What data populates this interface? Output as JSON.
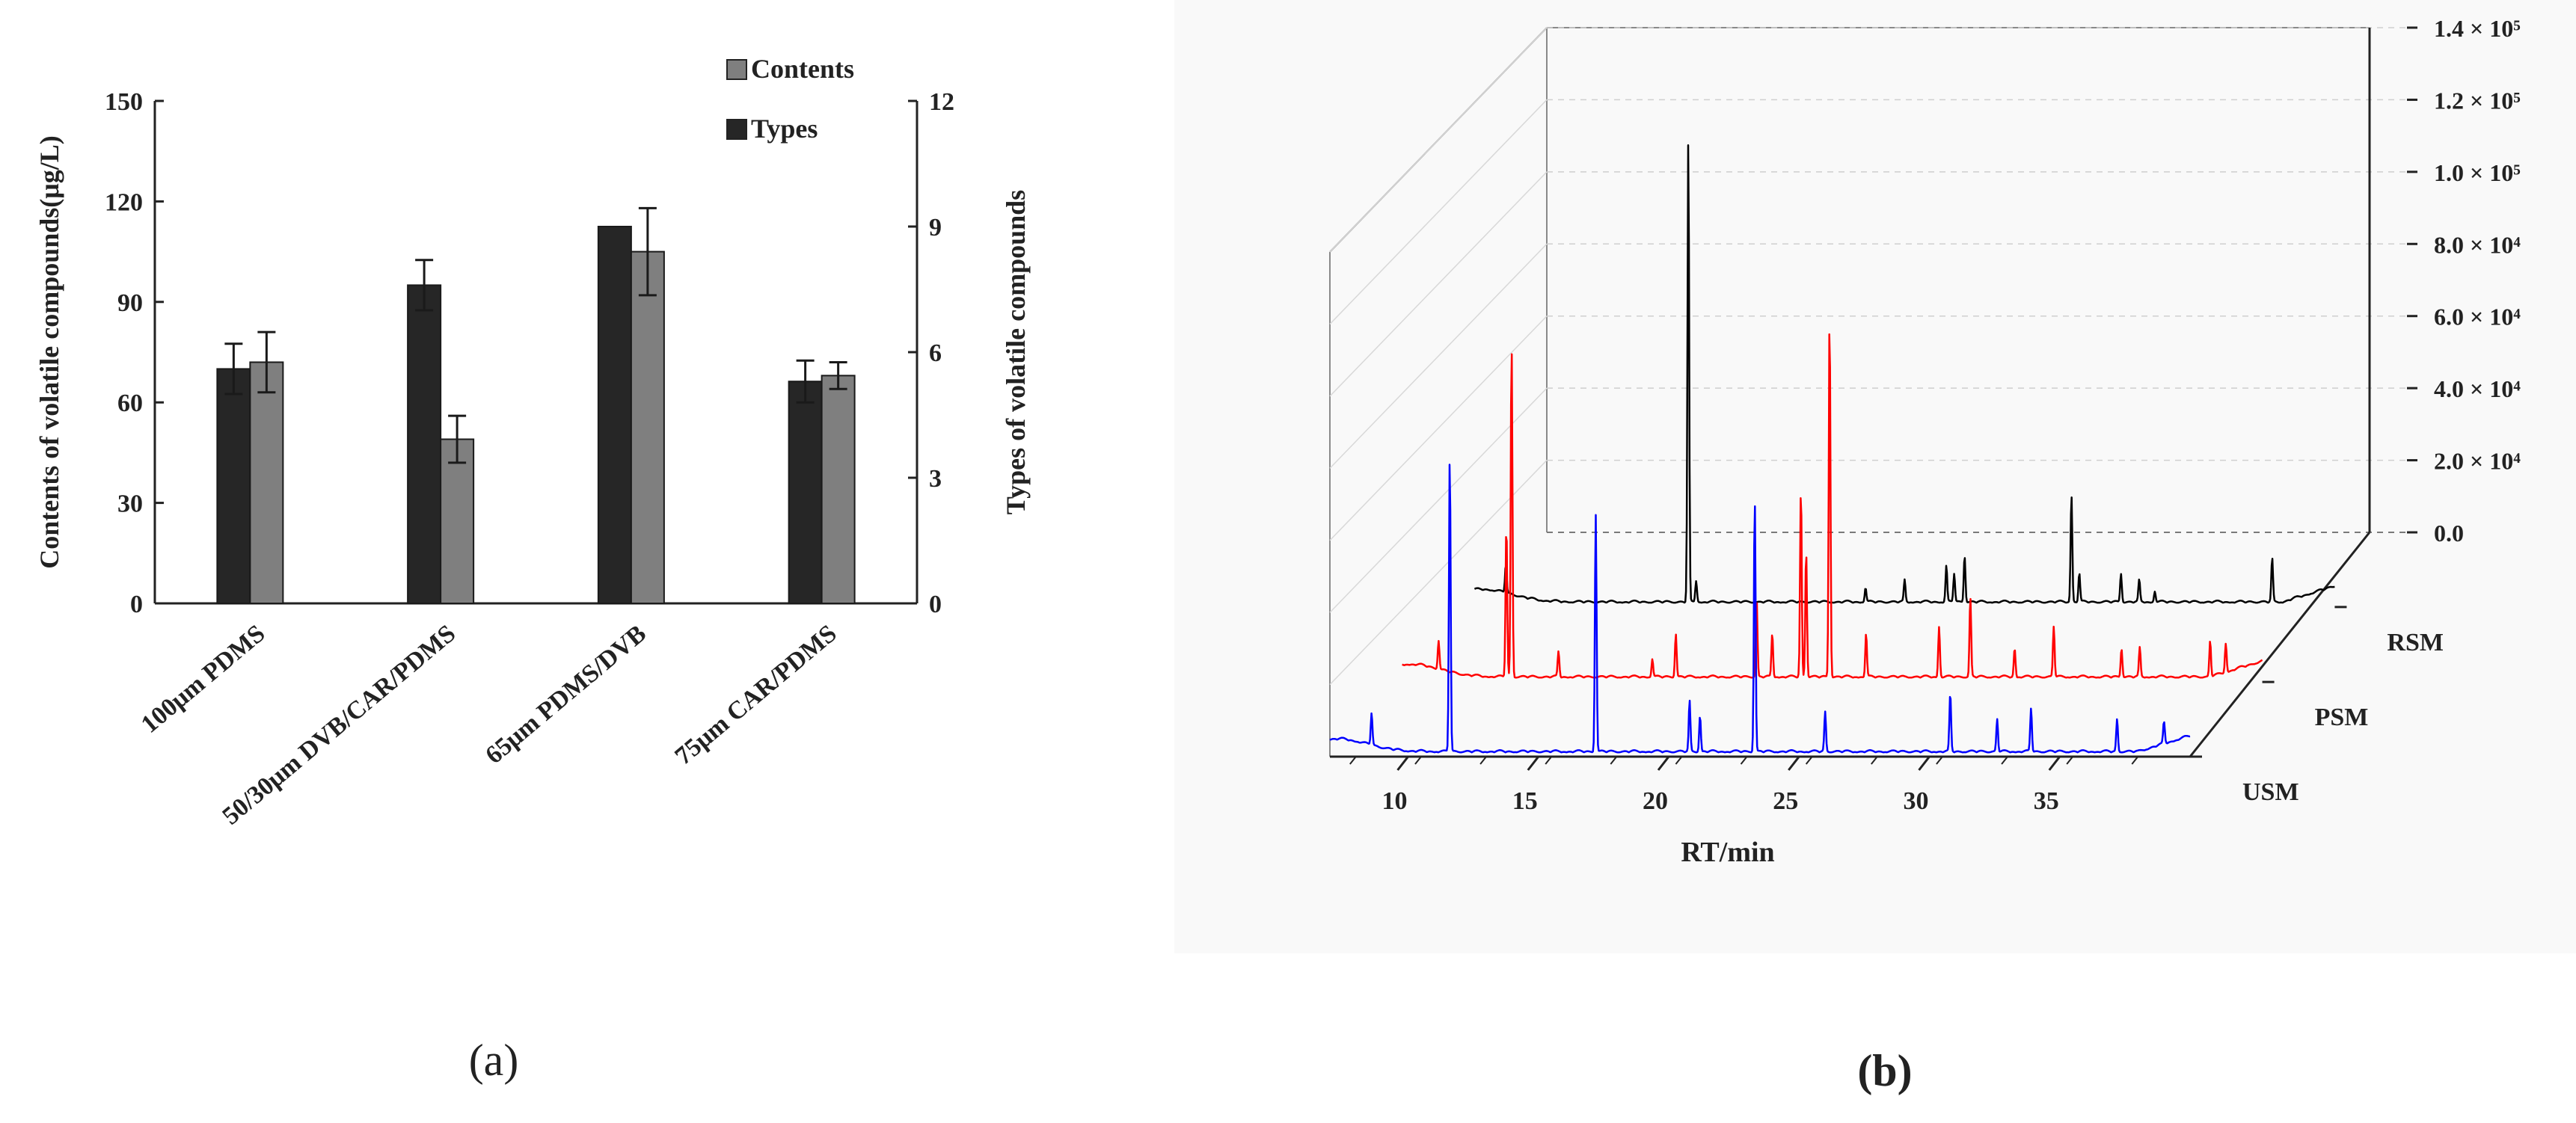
{
  "figure": {
    "panel_a_label": "(a)",
    "panel_b_label": "(b)"
  },
  "chart_data": [
    {
      "type": "bar",
      "panel": "a",
      "categories": [
        "100μm PDMS",
        "50/30μm DVB/CAR/PDMS",
        "65μm PDMS/DVB",
        "75μm CAR/PDMS"
      ],
      "series": [
        {
          "name": "Types",
          "axis": "right",
          "color": "#262626",
          "values": [
            5.6,
            7.6,
            9.0,
            5.3
          ],
          "errors": [
            0.6,
            0.6,
            0,
            0.5
          ]
        },
        {
          "name": "Contents",
          "axis": "left",
          "color": "#7f7f7f",
          "values": [
            72,
            49,
            105,
            68
          ],
          "errors": [
            9,
            7,
            13,
            4
          ]
        }
      ],
      "ylabel_left": "Contents of volatile compounds(μg/L)",
      "ylabel_right": "Types of volatile compounds",
      "ylim_left": [
        0,
        150
      ],
      "ylim_right": [
        0,
        12
      ],
      "yticks_left": [
        "0",
        "30",
        "60",
        "90",
        "120",
        "150"
      ],
      "yticks_right": [
        "0",
        "3",
        "6",
        "9",
        "12"
      ],
      "legend": [
        "Contents",
        "Types"
      ],
      "legend_position": "top-right"
    },
    {
      "type": "line",
      "panel": "b",
      "subtype": "3d-stacked-chromatogram",
      "xlabel": "RT/min",
      "x_range": [
        7,
        40
      ],
      "xticks": [
        "10",
        "15",
        "20",
        "25",
        "30",
        "35"
      ],
      "z_labels": [
        "RSM",
        "PSM",
        "USM"
      ],
      "zticks": [
        "0.0",
        "2.0 × 10⁴",
        "4.0 × 10⁴",
        "6.0 × 10⁴",
        "8.0 × 10⁴",
        "1.0 × 10⁵",
        "1.2 × 10⁵",
        "1.4 × 10⁵"
      ],
      "z_range": [
        0,
        140000
      ],
      "series": [
        {
          "name": "RSM",
          "color": "#000000",
          "peaks": [
            [
              8.2,
              8000
            ],
            [
              15.2,
              128000
            ],
            [
              15.5,
              6000
            ],
            [
              22.0,
              4000
            ],
            [
              23.5,
              6000
            ],
            [
              25.1,
              10000
            ],
            [
              25.4,
              8000
            ],
            [
              25.8,
              13000
            ],
            [
              29.9,
              30000
            ],
            [
              30.2,
              8000
            ],
            [
              31.8,
              8000
            ],
            [
              32.5,
              6000
            ],
            [
              33.1,
              3000
            ],
            [
              37.6,
              12000
            ]
          ]
        },
        {
          "name": "PSM",
          "color": "#ff0000",
          "peaks": [
            [
              8.4,
              8000
            ],
            [
              11.0,
              42000
            ],
            [
              11.2,
              92000
            ],
            [
              13.0,
              7000
            ],
            [
              16.6,
              5000
            ],
            [
              17.5,
              12000
            ],
            [
              20.6,
              22000
            ],
            [
              21.2,
              12000
            ],
            [
              22.3,
              52000
            ],
            [
              22.5,
              35000
            ],
            [
              23.4,
              100000
            ],
            [
              24.8,
              12000
            ],
            [
              27.6,
              14000
            ],
            [
              28.8,
              22000
            ],
            [
              30.5,
              8000
            ],
            [
              32.0,
              14000
            ],
            [
              34.6,
              8000
            ],
            [
              35.3,
              8000
            ],
            [
              38.0,
              10000
            ],
            [
              38.6,
              8000
            ]
          ]
        },
        {
          "name": "USM",
          "color": "#0000ff",
          "peaks": [
            [
              8.6,
              9000
            ],
            [
              11.6,
              82000
            ],
            [
              17.2,
              66000
            ],
            [
              20.8,
              14000
            ],
            [
              21.2,
              10000
            ],
            [
              23.3,
              70000
            ],
            [
              26.0,
              11000
            ],
            [
              30.8,
              16000
            ],
            [
              32.6,
              9000
            ],
            [
              33.9,
              12000
            ],
            [
              37.2,
              9000
            ],
            [
              39.0,
              6000
            ]
          ]
        }
      ]
    }
  ]
}
